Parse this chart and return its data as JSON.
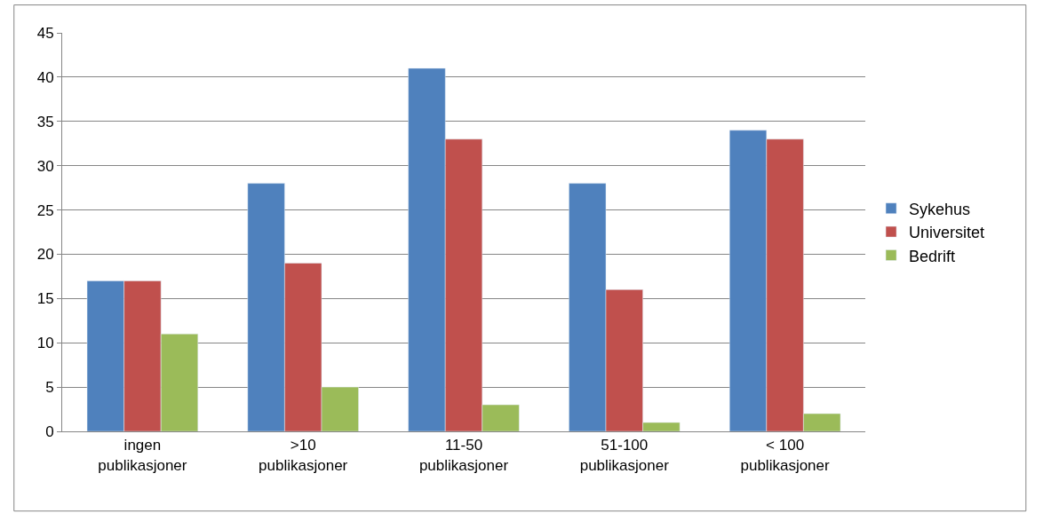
{
  "chart_data": {
    "type": "bar",
    "categories": [
      "ingen\npublikasjoner",
      ">10\npublikasjoner",
      "11-50\npublikasjoner",
      "51-100\npublikasjoner",
      "< 100\npublikasjoner"
    ],
    "series": [
      {
        "name": "Sykehus",
        "color": "#4f81bd",
        "values": [
          17,
          28,
          41,
          28,
          34
        ]
      },
      {
        "name": "Universitet",
        "color": "#c0504d",
        "values": [
          17,
          19,
          33,
          16,
          33
        ]
      },
      {
        "name": "Bedrift",
        "color": "#9bbb59",
        "values": [
          11,
          5,
          3,
          1,
          2
        ]
      }
    ],
    "ylim": [
      0,
      45
    ],
    "yticks": [
      0,
      5,
      10,
      15,
      20,
      25,
      30,
      35,
      40,
      45
    ],
    "grid": "y",
    "legend": "right"
  }
}
